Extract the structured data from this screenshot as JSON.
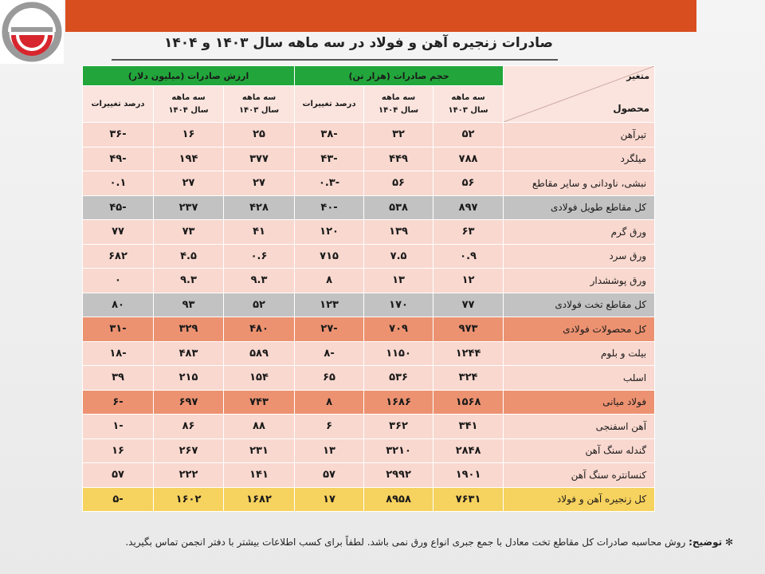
{
  "title": "صادرات زنجیره آهن و فولاد در سه ماهه سال ۱۴۰۳ و ۱۴۰۴",
  "header": {
    "corner_top": "متغیر",
    "corner_bottom": "محصول",
    "group_volume": "حجم صادرات (هزار تن)",
    "group_value": "ارزش صادرات (میلیون دلار)",
    "sub_1403_line1": "سه ماهه",
    "sub_1403_line2": "سال ۱۴۰۳",
    "sub_1404_line1": "سه ماهه",
    "sub_1404_line2": "سال ۱۴۰۴",
    "sub_change": "درصد تغییرات"
  },
  "rows": [
    {
      "name": "تیرآهن",
      "v1403": "۵۲",
      "v1404": "۳۲",
      "vchg": "-۳۸",
      "d1403": "۲۵",
      "d1404": "۱۶",
      "dchg": "-۳۶",
      "style": "light"
    },
    {
      "name": "میلگرد",
      "v1403": "۷۸۸",
      "v1404": "۴۴۹",
      "vchg": "-۴۳",
      "d1403": "۳۷۷",
      "d1404": "۱۹۴",
      "dchg": "-۴۹",
      "style": "light"
    },
    {
      "name": "نبشی، ناودانی و سایر مقاطع",
      "v1403": "۵۶",
      "v1404": "۵۶",
      "vchg": "-۰.۳",
      "d1403": "۲۷",
      "d1404": "۲۷",
      "dchg": "۰.۱",
      "style": "light"
    },
    {
      "name": "کل مقاطع طویل فولادی",
      "v1403": "۸۹۷",
      "v1404": "۵۳۸",
      "vchg": "-۴۰",
      "d1403": "۴۲۸",
      "d1404": "۲۳۷",
      "dchg": "-۴۵",
      "style": "gray"
    },
    {
      "name": "ورق گرم",
      "v1403": "۶۳",
      "v1404": "۱۳۹",
      "vchg": "۱۲۰",
      "d1403": "۴۱",
      "d1404": "۷۳",
      "dchg": "۷۷",
      "style": "light"
    },
    {
      "name": "ورق سرد",
      "v1403": "۰.۹",
      "v1404": "۷.۵",
      "vchg": "۷۱۵",
      "d1403": "۰.۶",
      "d1404": "۴.۵",
      "dchg": "۶۸۲",
      "style": "light"
    },
    {
      "name": "ورق پوششدار",
      "v1403": "۱۲",
      "v1404": "۱۳",
      "vchg": "۸",
      "d1403": "۹.۳",
      "d1404": "۹.۳",
      "dchg": "۰",
      "style": "light"
    },
    {
      "name": "کل مقاطع تخت فولادی",
      "v1403": "۷۷",
      "v1404": "۱۷۰",
      "vchg": "۱۲۳",
      "d1403": "۵۲",
      "d1404": "۹۳",
      "dchg": "۸۰",
      "style": "gray"
    },
    {
      "name": "کل محصولات فولادی",
      "v1403": "۹۷۳",
      "v1404": "۷۰۹",
      "vchg": "-۲۷",
      "d1403": "۴۸۰",
      "d1404": "۳۲۹",
      "dchg": "-۳۱",
      "style": "orange"
    },
    {
      "name": "بیلت و بلوم",
      "v1403": "۱۲۴۴",
      "v1404": "۱۱۵۰",
      "vchg": "-۸",
      "d1403": "۵۸۹",
      "d1404": "۴۸۳",
      "dchg": "-۱۸",
      "style": "light"
    },
    {
      "name": "اسلب",
      "v1403": "۳۲۴",
      "v1404": "۵۳۶",
      "vchg": "۶۵",
      "d1403": "۱۵۴",
      "d1404": "۲۱۵",
      "dchg": "۳۹",
      "style": "light"
    },
    {
      "name": "فولاد میانی",
      "v1403": "۱۵۶۸",
      "v1404": "۱۶۸۶",
      "vchg": "۸",
      "d1403": "۷۴۳",
      "d1404": "۶۹۷",
      "dchg": "-۶",
      "style": "orange"
    },
    {
      "name": "آهن اسفنجی",
      "v1403": "۳۴۱",
      "v1404": "۳۶۲",
      "vchg": "۶",
      "d1403": "۸۸",
      "d1404": "۸۶",
      "dchg": "-۱",
      "style": "light"
    },
    {
      "name": "گندله سنگ آهن",
      "v1403": "۲۸۴۸",
      "v1404": "۳۲۱۰",
      "vchg": "۱۳",
      "d1403": "۲۳۱",
      "d1404": "۲۶۷",
      "dchg": "۱۶",
      "style": "light"
    },
    {
      "name": "کنسانتره سنگ آهن",
      "v1403": "۱۹۰۱",
      "v1404": "۲۹۹۲",
      "vchg": "۵۷",
      "d1403": "۱۴۱",
      "d1404": "۲۲۲",
      "dchg": "۵۷",
      "style": "light"
    },
    {
      "name": "کل زنجیره آهن و فولاد",
      "v1403": "۷۶۳۱",
      "v1404": "۸۹۵۸",
      "vchg": "۱۷",
      "d1403": "۱۶۸۲",
      "d1404": "۱۶۰۲",
      "dchg": "-۵",
      "style": "yellow"
    }
  ],
  "footnote": {
    "label": "توضیح:",
    "text": "روش محاسبه صادرات کل مقاطع تخت معادل با جمع جبری انواع ورق نمی باشد. لطفاً برای کسب اطلاعات بیشتر با دفتر انجمن تماس بگیرید."
  },
  "colors": {
    "topbar": "#d94e1f",
    "header_green": "#22a63b",
    "row_light": "#f9d8cf",
    "row_gray": "#c2c2c2",
    "row_orange": "#ec9271",
    "row_yellow": "#f6d25e",
    "logo_red": "#d7262e",
    "logo_gray": "#9a9a9a"
  }
}
